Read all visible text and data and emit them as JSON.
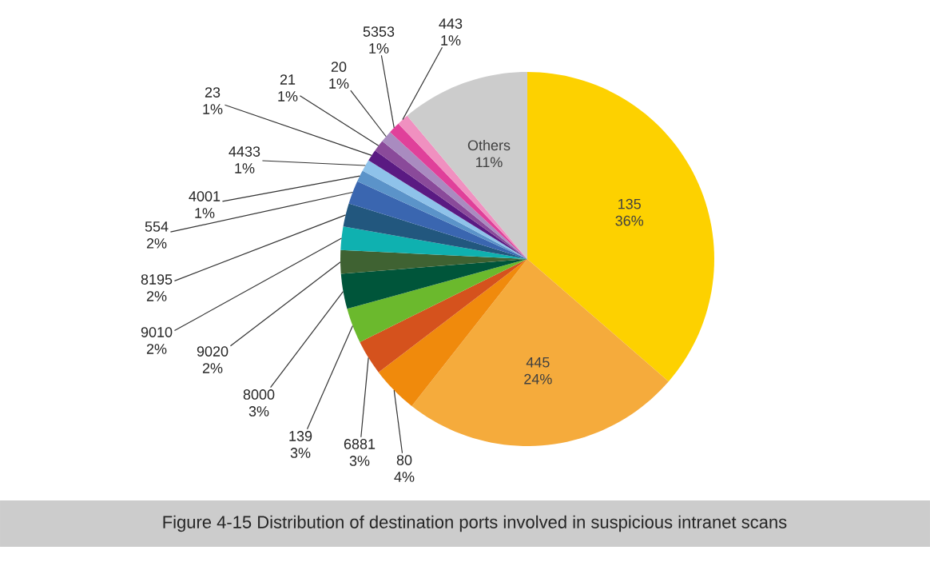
{
  "chart_data": {
    "type": "pie",
    "annotations": [
      "Figure 4-15 Distribution of destination ports involved in suspicious intranet scans"
    ],
    "categories": [
      "135",
      "445",
      "80",
      "6881",
      "139",
      "8000",
      "9020",
      "9010",
      "8195",
      "554",
      "4001",
      "4433",
      "23",
      "21",
      "20",
      "5353",
      "443",
      "Others"
    ],
    "values": [
      36,
      24,
      4,
      3,
      3,
      3,
      2,
      2,
      2,
      2,
      1,
      1,
      1,
      1,
      1,
      1,
      1,
      11
    ],
    "value_labels": [
      "36%",
      "24%",
      "4%",
      "3%",
      "3%",
      "3%",
      "2%",
      "2%",
      "2%",
      "2%",
      "1%",
      "1%",
      "1%",
      "1%",
      "1%",
      "1%",
      "1%",
      "11%"
    ],
    "colors": [
      "#fdd100",
      "#f5ab3c",
      "#f08a0c",
      "#d5521d",
      "#6bb92d",
      "#00553a",
      "#3f6232",
      "#0fb1b0",
      "#22577e",
      "#3a66b0",
      "#5b93c9",
      "#8ec2ea",
      "#5a1a82",
      "#8a4a9a",
      "#a98bc0",
      "#e0409a",
      "#f090c0",
      "#cccccc"
    ]
  }
}
